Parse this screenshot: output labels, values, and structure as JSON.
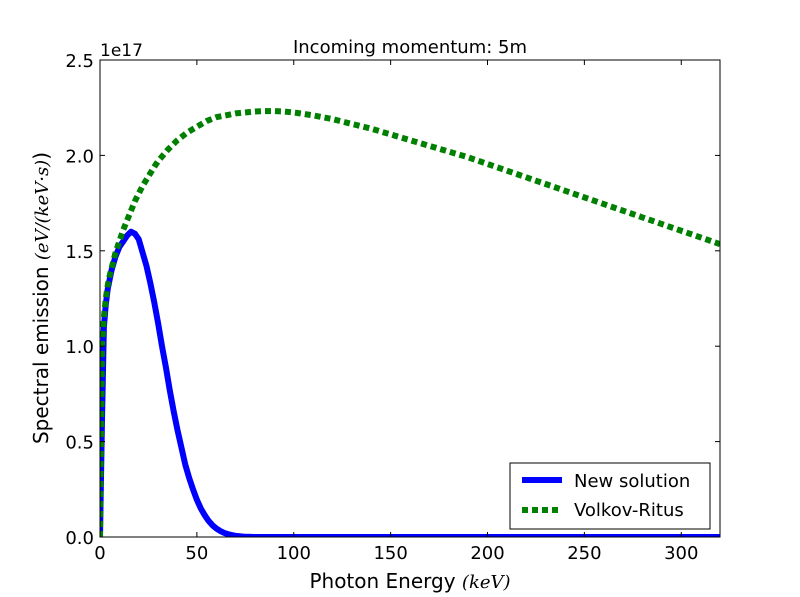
{
  "chart_data": {
    "type": "line",
    "title": "Incoming momentum: 5m",
    "xlabel": "Photon Energy",
    "xlabel_unit": "(keV)",
    "ylabel": "Spectral emission",
    "ylabel_unit": "(eV/(keV·s)",
    "ylabel_close": ")",
    "y_multiplier": "1e17",
    "xlim": [
      0,
      320
    ],
    "ylim": [
      0,
      2.5
    ],
    "x_ticks": [
      0,
      50,
      100,
      150,
      200,
      250,
      300
    ],
    "x_tick_labels": [
      "0",
      "50",
      "100",
      "150",
      "200",
      "250",
      "300"
    ],
    "y_ticks": [
      0,
      0.5,
      1.0,
      1.5,
      2.0,
      2.5
    ],
    "y_tick_labels": [
      "0.0",
      "0.5",
      "1.0",
      "1.5",
      "2.0",
      "2.5"
    ],
    "legend_position": "bottom-right",
    "series": [
      {
        "name": "New solution",
        "color": "#0000ff",
        "style": "solid",
        "x": [
          0,
          1,
          2,
          3,
          4,
          5,
          6,
          8,
          10,
          12,
          14,
          16,
          18,
          20,
          22,
          24,
          26,
          28,
          30,
          32,
          34,
          36,
          38,
          40,
          42,
          44,
          46,
          48,
          50,
          52,
          54,
          56,
          58,
          60,
          62,
          64,
          66,
          68,
          70,
          72,
          74,
          76,
          78,
          80,
          85,
          90,
          100,
          150,
          200,
          250,
          300,
          320
        ],
        "y": [
          0,
          0.6,
          1.1,
          1.22,
          1.3,
          1.35,
          1.4,
          1.47,
          1.52,
          1.55,
          1.58,
          1.6,
          1.59,
          1.56,
          1.49,
          1.42,
          1.33,
          1.23,
          1.12,
          1.0,
          0.89,
          0.77,
          0.66,
          0.56,
          0.47,
          0.38,
          0.31,
          0.25,
          0.195,
          0.15,
          0.115,
          0.085,
          0.062,
          0.045,
          0.032,
          0.022,
          0.015,
          0.01,
          0.006,
          0.004,
          0.002,
          0.001,
          0.0005,
          0.0002,
          0,
          0,
          0,
          0,
          0,
          0,
          0,
          0
        ]
      },
      {
        "name": "Volkov-Ritus",
        "color": "#008000",
        "style": "dotted",
        "x": [
          0,
          1,
          2,
          3,
          4,
          5,
          6,
          8,
          10,
          12,
          14,
          16,
          18,
          20,
          22,
          25,
          28,
          30,
          35,
          40,
          45,
          50,
          55,
          60,
          65,
          70,
          75,
          80,
          85,
          90,
          95,
          100,
          110,
          120,
          130,
          140,
          150,
          160,
          170,
          180,
          190,
          200,
          210,
          220,
          230,
          240,
          250,
          260,
          270,
          280,
          290,
          300,
          310,
          320
        ],
        "y": [
          0,
          1.0,
          1.15,
          1.25,
          1.32,
          1.37,
          1.41,
          1.49,
          1.55,
          1.61,
          1.66,
          1.71,
          1.76,
          1.8,
          1.84,
          1.89,
          1.94,
          1.97,
          2.03,
          2.08,
          2.12,
          2.15,
          2.18,
          2.2,
          2.21,
          2.22,
          2.225,
          2.23,
          2.232,
          2.232,
          2.23,
          2.225,
          2.21,
          2.19,
          2.165,
          2.14,
          2.11,
          2.08,
          2.05,
          2.02,
          1.99,
          1.955,
          1.92,
          1.885,
          1.85,
          1.815,
          1.78,
          1.745,
          1.71,
          1.675,
          1.64,
          1.605,
          1.57,
          1.535
        ]
      }
    ]
  }
}
